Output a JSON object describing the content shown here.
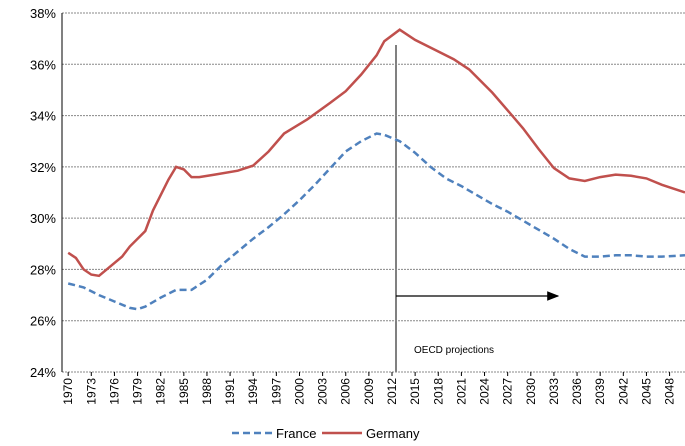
{
  "chart_data": {
    "type": "line",
    "annotation": "OECD projections",
    "xlim": [
      1969.2,
      2050
    ],
    "xticks": [
      1970,
      1973,
      1976,
      1979,
      1982,
      1985,
      1988,
      1991,
      1994,
      1997,
      2000,
      2003,
      2006,
      2009,
      2012,
      2015,
      2018,
      2021,
      2024,
      2027,
      2030,
      2033,
      2036,
      2039,
      2042,
      2045,
      2048
    ],
    "ylim": [
      24,
      38
    ],
    "yticks": [
      {
        "value": 24,
        "label": "24%"
      },
      {
        "value": 26,
        "label": "26%"
      },
      {
        "value": 28,
        "label": "28%"
      },
      {
        "value": 30,
        "label": "30%"
      },
      {
        "value": 32,
        "label": "32%"
      },
      {
        "value": 34,
        "label": "34%"
      },
      {
        "value": 36,
        "label": "36%"
      },
      {
        "value": 38,
        "label": "38%"
      }
    ],
    "grid": true,
    "legend": "bottom",
    "series": [
      {
        "name": "France",
        "color": "#4f81bd",
        "dash": true,
        "x": [
          1970,
          1972,
          1974,
          1976,
          1978,
          1979,
          1980,
          1982,
          1984,
          1986,
          1988,
          1990,
          1992,
          1994,
          1996,
          1998,
          2000,
          2002,
          2004,
          2006,
          2008,
          2010,
          2011,
          2013,
          2015,
          2017,
          2019,
          2021,
          2023,
          2025,
          2027,
          2029,
          2031,
          2033,
          2035,
          2037,
          2039,
          2041,
          2043,
          2045,
          2047,
          2050
        ],
        "values": [
          27.45,
          27.3,
          27.0,
          26.75,
          26.5,
          26.45,
          26.55,
          26.9,
          27.2,
          27.2,
          27.6,
          28.2,
          28.7,
          29.2,
          29.65,
          30.15,
          30.7,
          31.3,
          31.95,
          32.6,
          33.0,
          33.3,
          33.25,
          33.0,
          32.55,
          32.0,
          31.55,
          31.25,
          30.9,
          30.55,
          30.25,
          29.9,
          29.55,
          29.2,
          28.8,
          28.5,
          28.5,
          28.55,
          28.55,
          28.5,
          28.5,
          28.55
        ]
      },
      {
        "name": "Germany",
        "color": "#c0504d",
        "dash": false,
        "x": [
          1970,
          1971,
          1972,
          1973,
          1974,
          1975,
          1977,
          1978,
          1980,
          1981,
          1983,
          1984,
          1985,
          1986,
          1987,
          1989,
          1992,
          1994,
          1996,
          1998,
          2001,
          2004,
          2006,
          2008,
          2010,
          2011,
          2013,
          2015,
          2018,
          2020,
          2022,
          2025,
          2027,
          2029,
          2031,
          2033,
          2035,
          2037,
          2039,
          2041,
          2043,
          2045,
          2047,
          2050
        ],
        "values": [
          28.65,
          28.45,
          28.0,
          27.8,
          27.75,
          28.0,
          28.5,
          28.9,
          29.5,
          30.3,
          31.5,
          32.0,
          31.9,
          31.6,
          31.6,
          31.7,
          31.85,
          32.05,
          32.6,
          33.3,
          33.85,
          34.5,
          34.95,
          35.6,
          36.35,
          36.9,
          37.35,
          36.95,
          36.5,
          36.2,
          35.8,
          34.9,
          34.2,
          33.5,
          32.7,
          31.95,
          31.55,
          31.45,
          31.6,
          31.7,
          31.65,
          31.55,
          31.3,
          31.0
        ]
      }
    ]
  }
}
